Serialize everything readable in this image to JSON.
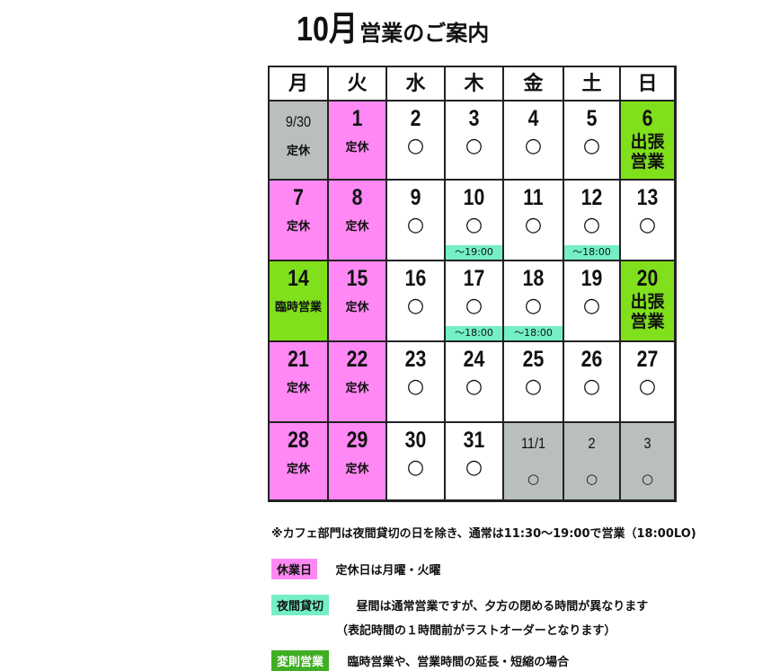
{
  "title": {
    "month": "10月",
    "suffix": "営業のご案内"
  },
  "headers": [
    "月",
    "火",
    "水",
    "木",
    "金",
    "土",
    "日"
  ],
  "rows": [
    [
      {
        "day": "9/30",
        "note": "定休",
        "bg": "gray"
      },
      {
        "day": "1",
        "note": "定休",
        "bg": "pink"
      },
      {
        "day": "2",
        "mark": "○"
      },
      {
        "day": "3",
        "mark": "○"
      },
      {
        "day": "4",
        "mark": "○"
      },
      {
        "day": "5",
        "mark": "○"
      },
      {
        "day": "6",
        "big": "出張\n営業",
        "bg": "green"
      }
    ],
    [
      {
        "day": "7",
        "note": "定休",
        "bg": "pink"
      },
      {
        "day": "8",
        "note": "定休",
        "bg": "pink"
      },
      {
        "day": "9",
        "mark": "○"
      },
      {
        "day": "10",
        "mark": "○",
        "time": "～19:00"
      },
      {
        "day": "11",
        "mark": "○"
      },
      {
        "day": "12",
        "mark": "○",
        "time": "～18:00"
      },
      {
        "day": "13",
        "mark": "○"
      }
    ],
    [
      {
        "day": "14",
        "note": "臨時営業",
        "bg": "green"
      },
      {
        "day": "15",
        "note": "定休",
        "bg": "pink"
      },
      {
        "day": "16",
        "mark": "○"
      },
      {
        "day": "17",
        "mark": "○",
        "time": "～18:00"
      },
      {
        "day": "18",
        "mark": "○",
        "time": "～18:00"
      },
      {
        "day": "19",
        "mark": "○"
      },
      {
        "day": "20",
        "big": "出張\n営業",
        "bg": "green"
      }
    ],
    [
      {
        "day": "21",
        "note": "定休",
        "bg": "pink"
      },
      {
        "day": "22",
        "note": "定休",
        "bg": "pink"
      },
      {
        "day": "23",
        "mark": "○"
      },
      {
        "day": "24",
        "mark": "○"
      },
      {
        "day": "25",
        "mark": "○"
      },
      {
        "day": "26",
        "mark": "○"
      },
      {
        "day": "27",
        "mark": "○"
      }
    ],
    [
      {
        "day": "28",
        "note": "定休",
        "bg": "pink"
      },
      {
        "day": "29",
        "note": "定休",
        "bg": "pink"
      },
      {
        "day": "30",
        "mark": "○"
      },
      {
        "day": "31",
        "mark": "○"
      },
      {
        "day": "11/1",
        "mark": "○",
        "bg": "gray",
        "small": true
      },
      {
        "day": "2",
        "mark": "○",
        "bg": "gray",
        "small": true
      },
      {
        "day": "3",
        "mark": "○",
        "bg": "gray",
        "small": true
      }
    ]
  ],
  "footer": {
    "cafe_note": "※カフェ部門は夜間貸切の日を除き、通常は11:30～19:00で営業（18:00LO)",
    "legend": [
      {
        "tag": "休業日",
        "text": "定休日は月曜・火曜",
        "color": "#ff88f4"
      },
      {
        "tag": "夜間貸切",
        "text": "昼間は通常営業ですが、夕方の閉める時間が異なります",
        "text2": "（表記時間の１時間前がラストオーダーとなります）",
        "color": "#74f0c4"
      },
      {
        "tag": "変則営業",
        "text": "臨時営業や、営業時間の延長・短縮の場合",
        "color": "#3fae22"
      }
    ]
  }
}
